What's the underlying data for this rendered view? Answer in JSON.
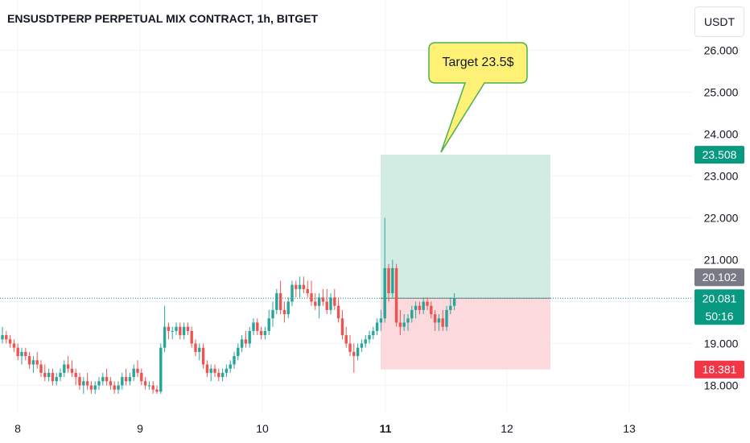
{
  "header": {
    "title": "ENSUSDTPERP PERPETUAL MIX CONTRACT, 1h, BITGET",
    "currency": "USDT"
  },
  "callout": {
    "text": "Target 23.5$"
  },
  "price_labels": {
    "target": "23.508",
    "prev": "20.102",
    "last": "20.081",
    "countdown": "50:16",
    "stop": "18.381"
  },
  "colors": {
    "up": "#26a69a",
    "down": "#ef5350",
    "target_zone": "#d2ece4",
    "stop_zone": "#fbd9dc",
    "target_label": "#089981",
    "stop_label": "#f23645",
    "prev_label": "#787b86",
    "callout_fill": "#fff176",
    "callout_border": "#4caf50"
  },
  "chart_data": {
    "type": "candlestick",
    "timeframe": "1h",
    "ylim": [
      17.7,
      26.8
    ],
    "y_ticks": [
      "18.000",
      "19.000",
      "21.000",
      "22.000",
      "23.000",
      "24.000",
      "25.000",
      "26.000"
    ],
    "x_ticks": [
      "8",
      "9",
      "10",
      "11",
      "12",
      "13"
    ],
    "last_price": 20.081,
    "prev_close": 20.102,
    "position": {
      "entry": 20.081,
      "target": 23.508,
      "stop": 18.381
    },
    "candles": [
      {
        "o": 19.1,
        "h": 19.4,
        "l": 19.0,
        "c": 19.2
      },
      {
        "o": 19.2,
        "h": 19.3,
        "l": 19.0,
        "c": 19.1
      },
      {
        "o": 19.1,
        "h": 19.2,
        "l": 18.9,
        "c": 19.0
      },
      {
        "o": 19.0,
        "h": 19.1,
        "l": 18.8,
        "c": 18.9
      },
      {
        "o": 18.9,
        "h": 19.0,
        "l": 18.6,
        "c": 18.7
      },
      {
        "o": 18.7,
        "h": 18.9,
        "l": 18.5,
        "c": 18.8
      },
      {
        "o": 18.8,
        "h": 18.9,
        "l": 18.6,
        "c": 18.7
      },
      {
        "o": 18.7,
        "h": 18.8,
        "l": 18.4,
        "c": 18.5
      },
      {
        "o": 18.5,
        "h": 18.7,
        "l": 18.3,
        "c": 18.6
      },
      {
        "o": 18.6,
        "h": 18.8,
        "l": 18.4,
        "c": 18.5
      },
      {
        "o": 18.5,
        "h": 18.6,
        "l": 18.2,
        "c": 18.3
      },
      {
        "o": 18.3,
        "h": 18.5,
        "l": 18.1,
        "c": 18.2
      },
      {
        "o": 18.2,
        "h": 18.4,
        "l": 18.1,
        "c": 18.3
      },
      {
        "o": 18.3,
        "h": 18.4,
        "l": 18.0,
        "c": 18.1
      },
      {
        "o": 18.1,
        "h": 18.3,
        "l": 18.0,
        "c": 18.2
      },
      {
        "o": 18.2,
        "h": 18.4,
        "l": 18.1,
        "c": 18.3
      },
      {
        "o": 18.3,
        "h": 18.6,
        "l": 18.2,
        "c": 18.5
      },
      {
        "o": 18.5,
        "h": 18.7,
        "l": 18.3,
        "c": 18.4
      },
      {
        "o": 18.4,
        "h": 18.6,
        "l": 18.2,
        "c": 18.3
      },
      {
        "o": 18.3,
        "h": 18.4,
        "l": 18.0,
        "c": 18.2
      },
      {
        "o": 18.2,
        "h": 18.3,
        "l": 17.9,
        "c": 18.0
      },
      {
        "o": 18.0,
        "h": 18.2,
        "l": 17.8,
        "c": 18.1
      },
      {
        "o": 18.1,
        "h": 18.3,
        "l": 17.9,
        "c": 18.0
      },
      {
        "o": 18.0,
        "h": 18.1,
        "l": 17.8,
        "c": 17.9
      },
      {
        "o": 17.9,
        "h": 18.1,
        "l": 17.8,
        "c": 18.0
      },
      {
        "o": 18.0,
        "h": 18.2,
        "l": 17.9,
        "c": 18.1
      },
      {
        "o": 18.1,
        "h": 18.3,
        "l": 18.0,
        "c": 18.2
      },
      {
        "o": 18.2,
        "h": 18.4,
        "l": 18.0,
        "c": 18.1
      },
      {
        "o": 18.1,
        "h": 18.2,
        "l": 17.9,
        "c": 18.0
      },
      {
        "o": 18.0,
        "h": 18.1,
        "l": 17.8,
        "c": 17.9
      },
      {
        "o": 17.9,
        "h": 18.1,
        "l": 17.8,
        "c": 18.0
      },
      {
        "o": 18.0,
        "h": 18.3,
        "l": 17.9,
        "c": 18.2
      },
      {
        "o": 18.2,
        "h": 18.4,
        "l": 18.0,
        "c": 18.1
      },
      {
        "o": 18.1,
        "h": 18.3,
        "l": 18.0,
        "c": 18.2
      },
      {
        "o": 18.2,
        "h": 18.5,
        "l": 18.1,
        "c": 18.4
      },
      {
        "o": 18.4,
        "h": 18.6,
        "l": 18.2,
        "c": 18.3
      },
      {
        "o": 18.3,
        "h": 18.4,
        "l": 18.0,
        "c": 18.1
      },
      {
        "o": 18.1,
        "h": 18.2,
        "l": 17.9,
        "c": 18.0
      },
      {
        "o": 18.0,
        "h": 18.1,
        "l": 17.9,
        "c": 18.0
      },
      {
        "o": 18.0,
        "h": 18.1,
        "l": 17.8,
        "c": 17.9
      },
      {
        "o": 17.9,
        "h": 18.0,
        "l": 17.8,
        "c": 17.85
      },
      {
        "o": 17.85,
        "h": 19.0,
        "l": 17.8,
        "c": 18.9
      },
      {
        "o": 18.9,
        "h": 19.9,
        "l": 18.8,
        "c": 19.4
      },
      {
        "o": 19.4,
        "h": 19.5,
        "l": 19.1,
        "c": 19.3
      },
      {
        "o": 19.3,
        "h": 19.4,
        "l": 19.1,
        "c": 19.3
      },
      {
        "o": 19.3,
        "h": 19.5,
        "l": 19.2,
        "c": 19.4
      },
      {
        "o": 19.4,
        "h": 19.5,
        "l": 19.1,
        "c": 19.2
      },
      {
        "o": 19.2,
        "h": 19.5,
        "l": 19.1,
        "c": 19.4
      },
      {
        "o": 19.4,
        "h": 19.5,
        "l": 19.2,
        "c": 19.3
      },
      {
        "o": 19.3,
        "h": 19.4,
        "l": 18.9,
        "c": 19.0
      },
      {
        "o": 19.0,
        "h": 19.1,
        "l": 18.7,
        "c": 18.8
      },
      {
        "o": 18.8,
        "h": 19.0,
        "l": 18.6,
        "c": 18.9
      },
      {
        "o": 18.9,
        "h": 19.0,
        "l": 18.4,
        "c": 18.5
      },
      {
        "o": 18.5,
        "h": 18.6,
        "l": 18.2,
        "c": 18.3
      },
      {
        "o": 18.3,
        "h": 18.5,
        "l": 18.1,
        "c": 18.4
      },
      {
        "o": 18.4,
        "h": 18.5,
        "l": 18.2,
        "c": 18.3
      },
      {
        "o": 18.3,
        "h": 18.4,
        "l": 18.1,
        "c": 18.2
      },
      {
        "o": 18.2,
        "h": 18.4,
        "l": 18.1,
        "c": 18.3
      },
      {
        "o": 18.3,
        "h": 18.5,
        "l": 18.2,
        "c": 18.4
      },
      {
        "o": 18.4,
        "h": 18.6,
        "l": 18.3,
        "c": 18.5
      },
      {
        "o": 18.5,
        "h": 18.8,
        "l": 18.4,
        "c": 18.7
      },
      {
        "o": 18.7,
        "h": 19.0,
        "l": 18.6,
        "c": 18.9
      },
      {
        "o": 18.9,
        "h": 19.2,
        "l": 18.8,
        "c": 19.1
      },
      {
        "o": 19.1,
        "h": 19.3,
        "l": 18.9,
        "c": 19.0
      },
      {
        "o": 19.0,
        "h": 19.4,
        "l": 18.9,
        "c": 19.3
      },
      {
        "o": 19.3,
        "h": 19.6,
        "l": 19.2,
        "c": 19.5
      },
      {
        "o": 19.5,
        "h": 19.6,
        "l": 19.2,
        "c": 19.3
      },
      {
        "o": 19.3,
        "h": 19.4,
        "l": 19.1,
        "c": 19.2
      },
      {
        "o": 19.2,
        "h": 19.4,
        "l": 19.1,
        "c": 19.3
      },
      {
        "o": 19.3,
        "h": 19.8,
        "l": 19.2,
        "c": 19.6
      },
      {
        "o": 19.6,
        "h": 20.0,
        "l": 19.4,
        "c": 19.8
      },
      {
        "o": 19.8,
        "h": 20.3,
        "l": 19.7,
        "c": 20.2
      },
      {
        "o": 20.2,
        "h": 20.5,
        "l": 19.7,
        "c": 19.8
      },
      {
        "o": 19.8,
        "h": 20.0,
        "l": 19.5,
        "c": 19.7
      },
      {
        "o": 19.7,
        "h": 20.1,
        "l": 19.6,
        "c": 20.0
      },
      {
        "o": 20.0,
        "h": 20.5,
        "l": 19.9,
        "c": 20.4
      },
      {
        "o": 20.4,
        "h": 20.5,
        "l": 20.1,
        "c": 20.3
      },
      {
        "o": 20.3,
        "h": 20.6,
        "l": 20.1,
        "c": 20.4
      },
      {
        "o": 20.4,
        "h": 20.6,
        "l": 20.2,
        "c": 20.3
      },
      {
        "o": 20.3,
        "h": 20.5,
        "l": 20.1,
        "c": 20.2
      },
      {
        "o": 20.2,
        "h": 20.5,
        "l": 19.9,
        "c": 20.0
      },
      {
        "o": 20.0,
        "h": 20.2,
        "l": 19.8,
        "c": 19.9
      },
      {
        "o": 19.9,
        "h": 20.2,
        "l": 19.6,
        "c": 20.1
      },
      {
        "o": 20.1,
        "h": 20.3,
        "l": 19.9,
        "c": 20.0
      },
      {
        "o": 20.0,
        "h": 20.3,
        "l": 19.7,
        "c": 19.8
      },
      {
        "o": 19.8,
        "h": 20.2,
        "l": 19.7,
        "c": 20.1
      },
      {
        "o": 20.1,
        "h": 20.3,
        "l": 19.8,
        "c": 19.9
      },
      {
        "o": 19.9,
        "h": 20.1,
        "l": 19.5,
        "c": 19.6
      },
      {
        "o": 19.6,
        "h": 19.8,
        "l": 19.1,
        "c": 19.2
      },
      {
        "o": 19.2,
        "h": 19.4,
        "l": 18.9,
        "c": 19.0
      },
      {
        "o": 19.0,
        "h": 19.2,
        "l": 18.7,
        "c": 18.8
      },
      {
        "o": 18.8,
        "h": 19.0,
        "l": 18.3,
        "c": 18.7
      },
      {
        "o": 18.7,
        "h": 19.0,
        "l": 18.6,
        "c": 18.9
      },
      {
        "o": 18.9,
        "h": 19.1,
        "l": 18.8,
        "c": 19.0
      },
      {
        "o": 19.0,
        "h": 19.2,
        "l": 18.9,
        "c": 19.1
      },
      {
        "o": 19.1,
        "h": 19.3,
        "l": 19.0,
        "c": 19.2
      },
      {
        "o": 19.2,
        "h": 19.4,
        "l": 19.1,
        "c": 19.3
      },
      {
        "o": 19.3,
        "h": 19.6,
        "l": 19.2,
        "c": 19.5
      },
      {
        "o": 19.5,
        "h": 19.8,
        "l": 19.3,
        "c": 19.6
      },
      {
        "o": 19.6,
        "h": 22.0,
        "l": 19.5,
        "c": 20.8
      },
      {
        "o": 20.8,
        "h": 20.9,
        "l": 20.0,
        "c": 20.2
      },
      {
        "o": 20.2,
        "h": 21.0,
        "l": 20.1,
        "c": 20.8
      },
      {
        "o": 20.8,
        "h": 20.9,
        "l": 19.4,
        "c": 19.5
      },
      {
        "o": 19.5,
        "h": 19.8,
        "l": 19.2,
        "c": 19.4
      },
      {
        "o": 19.4,
        "h": 19.7,
        "l": 19.3,
        "c": 19.5
      },
      {
        "o": 19.5,
        "h": 19.7,
        "l": 19.3,
        "c": 19.6
      },
      {
        "o": 19.6,
        "h": 19.9,
        "l": 19.5,
        "c": 19.8
      },
      {
        "o": 19.8,
        "h": 20.0,
        "l": 19.6,
        "c": 19.9
      },
      {
        "o": 19.9,
        "h": 20.0,
        "l": 19.7,
        "c": 19.8
      },
      {
        "o": 19.8,
        "h": 20.1,
        "l": 19.7,
        "c": 20.0
      },
      {
        "o": 20.0,
        "h": 20.1,
        "l": 19.8,
        "c": 19.9
      },
      {
        "o": 19.9,
        "h": 20.0,
        "l": 19.6,
        "c": 19.7
      },
      {
        "o": 19.7,
        "h": 19.8,
        "l": 19.3,
        "c": 19.5
      },
      {
        "o": 19.5,
        "h": 19.7,
        "l": 19.3,
        "c": 19.6
      },
      {
        "o": 19.6,
        "h": 19.8,
        "l": 19.3,
        "c": 19.4
      },
      {
        "o": 19.4,
        "h": 19.9,
        "l": 19.3,
        "c": 19.8
      },
      {
        "o": 19.8,
        "h": 20.1,
        "l": 19.7,
        "c": 19.9
      },
      {
        "o": 19.9,
        "h": 20.2,
        "l": 19.8,
        "c": 20.081
      }
    ]
  }
}
